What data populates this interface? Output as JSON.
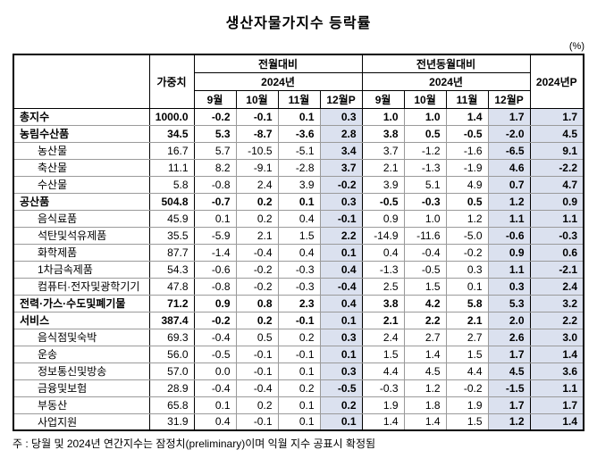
{
  "title": "생산자물가지수 등락률",
  "unit_note": "(%)",
  "footnote": "주 : 당월 및 2024년 연간지수는 잠정치(preliminary)이며 익월 지수 공표시 확정됨",
  "colors": {
    "shade": "#dbe1ef"
  },
  "table": {
    "weight_header": "가중치",
    "mom_header": "전월대비",
    "yoy_header": "전년동월대비",
    "year_label": "2024년",
    "annual_header": "2024년P",
    "months": [
      "9월",
      "10월",
      "11월",
      "12월P"
    ],
    "rows": [
      {
        "label": "총지수",
        "level": 0,
        "bold": true,
        "weight": "1000.0",
        "mom": [
          "-0.2",
          "-0.1",
          "0.1",
          "0.3"
        ],
        "yoy": [
          "1.0",
          "1.0",
          "1.4",
          "1.7"
        ],
        "annual": "1.7"
      },
      {
        "label": "농림수산품",
        "level": 0,
        "bold": true,
        "weight": "34.5",
        "mom": [
          "5.3",
          "-8.7",
          "-3.6",
          "2.8"
        ],
        "yoy": [
          "3.8",
          "0.5",
          "-0.5",
          "-2.0"
        ],
        "annual": "4.5"
      },
      {
        "label": "농산물",
        "level": 1,
        "bold": false,
        "weight": "16.7",
        "mom": [
          "5.7",
          "-10.5",
          "-5.1",
          "3.4"
        ],
        "yoy": [
          "3.7",
          "-1.2",
          "-1.6",
          "-6.5"
        ],
        "annual": "9.1"
      },
      {
        "label": "축산물",
        "level": 1,
        "bold": false,
        "weight": "11.1",
        "mom": [
          "8.2",
          "-9.1",
          "-2.8",
          "3.7"
        ],
        "yoy": [
          "2.1",
          "-1.3",
          "-1.9",
          "4.6"
        ],
        "annual": "-2.2"
      },
      {
        "label": "수산물",
        "level": 1,
        "bold": false,
        "weight": "5.8",
        "mom": [
          "-0.8",
          "2.4",
          "3.9",
          "-0.2"
        ],
        "yoy": [
          "3.9",
          "5.1",
          "4.9",
          "0.7"
        ],
        "annual": "4.7"
      },
      {
        "label": "공산품",
        "level": 0,
        "bold": true,
        "weight": "504.8",
        "mom": [
          "-0.7",
          "0.2",
          "0.1",
          "0.3"
        ],
        "yoy": [
          "-0.5",
          "-0.3",
          "0.5",
          "1.2"
        ],
        "annual": "0.9"
      },
      {
        "label": "음식료품",
        "level": 1,
        "bold": false,
        "weight": "45.9",
        "mom": [
          "0.1",
          "0.2",
          "0.4",
          "-0.1"
        ],
        "yoy": [
          "0.9",
          "1.0",
          "1.2",
          "1.1"
        ],
        "annual": "1.1"
      },
      {
        "label": "석탄및석유제품",
        "level": 1,
        "bold": false,
        "weight": "35.5",
        "mom": [
          "-5.9",
          "2.1",
          "1.5",
          "2.2"
        ],
        "yoy": [
          "-14.9",
          "-11.6",
          "-5.0",
          "-0.6"
        ],
        "annual": "-0.3"
      },
      {
        "label": "화학제품",
        "level": 1,
        "bold": false,
        "weight": "87.7",
        "mom": [
          "-1.4",
          "-0.4",
          "0.4",
          "0.1"
        ],
        "yoy": [
          "0.4",
          "-0.4",
          "-0.2",
          "0.9"
        ],
        "annual": "0.6"
      },
      {
        "label": "1차금속제품",
        "level": 1,
        "bold": false,
        "weight": "54.3",
        "mom": [
          "-0.6",
          "-0.2",
          "-0.3",
          "0.4"
        ],
        "yoy": [
          "-1.3",
          "-0.5",
          "0.3",
          "1.1"
        ],
        "annual": "-2.1"
      },
      {
        "label": "컴퓨터·전자및광학기기",
        "level": 1,
        "bold": false,
        "weight": "47.8",
        "mom": [
          "-0.8",
          "-0.2",
          "-0.3",
          "-0.4"
        ],
        "yoy": [
          "2.5",
          "1.5",
          "0.1",
          "0.3"
        ],
        "annual": "2.4"
      },
      {
        "label": "전력·가스·수도및폐기물",
        "level": 0,
        "bold": true,
        "weight": "71.2",
        "mom": [
          "0.9",
          "0.8",
          "2.3",
          "0.4"
        ],
        "yoy": [
          "3.8",
          "4.2",
          "5.8",
          "5.3"
        ],
        "annual": "3.2"
      },
      {
        "label": "서비스",
        "level": 0,
        "bold": true,
        "weight": "387.4",
        "mom": [
          "-0.2",
          "0.2",
          "-0.1",
          "0.1"
        ],
        "yoy": [
          "2.1",
          "2.2",
          "2.1",
          "2.0"
        ],
        "annual": "2.2"
      },
      {
        "label": "음식점및숙박",
        "level": 1,
        "bold": false,
        "weight": "69.3",
        "mom": [
          "-0.4",
          "0.5",
          "0.2",
          "0.3"
        ],
        "yoy": [
          "2.4",
          "2.7",
          "2.7",
          "2.6"
        ],
        "annual": "3.0"
      },
      {
        "label": "운송",
        "level": 1,
        "bold": false,
        "weight": "56.0",
        "mom": [
          "-0.5",
          "-0.1",
          "-0.1",
          "0.1"
        ],
        "yoy": [
          "1.5",
          "1.4",
          "1.5",
          "1.7"
        ],
        "annual": "1.4"
      },
      {
        "label": "정보통신및방송",
        "level": 1,
        "bold": false,
        "weight": "57.0",
        "mom": [
          "0.0",
          "-0.1",
          "0.1",
          "0.3"
        ],
        "yoy": [
          "4.4",
          "4.5",
          "4.4",
          "4.5"
        ],
        "annual": "3.6"
      },
      {
        "label": "금융및보험",
        "level": 1,
        "bold": false,
        "weight": "28.9",
        "mom": [
          "-0.4",
          "-0.4",
          "0.2",
          "-0.5"
        ],
        "yoy": [
          "-0.3",
          "1.2",
          "-0.2",
          "-1.5"
        ],
        "annual": "1.1"
      },
      {
        "label": "부동산",
        "level": 1,
        "bold": false,
        "weight": "65.8",
        "mom": [
          "0.1",
          "0.2",
          "0.1",
          "0.2"
        ],
        "yoy": [
          "1.9",
          "1.8",
          "1.9",
          "1.7"
        ],
        "annual": "1.7"
      },
      {
        "label": "사업지원",
        "level": 1,
        "bold": false,
        "weight": "31.9",
        "mom": [
          "0.4",
          "-0.1",
          "0.1",
          "0.1"
        ],
        "yoy": [
          "1.4",
          "1.4",
          "1.5",
          "1.2"
        ],
        "annual": "1.4"
      }
    ]
  }
}
